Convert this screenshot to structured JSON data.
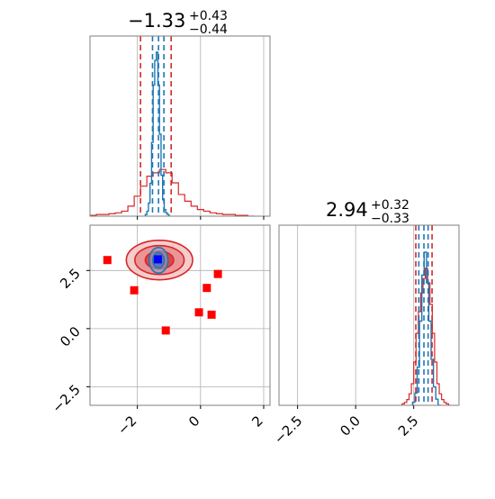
{
  "chart_data": {
    "type": "corner",
    "parameters": [
      {
        "value": "-1.33",
        "plus": "+0.43",
        "minus": "-0.44",
        "median": -1.33,
        "low": -1.77,
        "high": -0.9
      },
      {
        "value": "2.94",
        "plus": "+0.32",
        "minus": "-0.33",
        "median": 2.94,
        "low": 2.61,
        "high": 3.26
      }
    ],
    "x_range_param1": [
      -3.5,
      2.2
    ],
    "x_range_param2": [
      -3.3,
      4.45
    ],
    "ticks_param1": [
      "-2",
      "0",
      "2"
    ],
    "ticks_param1_values": [
      -2,
      0,
      2
    ],
    "ticks_param2": [
      "-2.5",
      "0.0",
      "2.5"
    ],
    "ticks_param2_values": [
      -2.5,
      0.0,
      2.5
    ],
    "grid": true,
    "series": [
      {
        "name": "",
        "color": "#1f77b4",
        "quantiles_inner": [
          -1.52,
          -1.16
        ],
        "quantiles_inner_param2": [
          2.72,
          3.12
        ]
      },
      {
        "name": "",
        "color": "#d62728",
        "quantiles_outer": [
          -1.9,
          -0.93
        ],
        "quantiles_outer_param2": [
          2.59,
          3.29
        ]
      }
    ],
    "hist_param1_blue": {
      "bins": [
        -1.75,
        -1.7,
        -1.65,
        -1.6,
        -1.55,
        -1.5,
        -1.45,
        -1.4,
        -1.35,
        -1.3,
        -1.25,
        -1.2,
        -1.15,
        -1.1,
        -1.05,
        -1.0
      ],
      "counts": [
        0.01,
        0.03,
        0.08,
        0.2,
        0.45,
        0.8,
        0.95,
        1.0,
        0.8,
        0.5,
        0.25,
        0.1,
        0.04,
        0.02,
        0.01,
        0.0
      ]
    },
    "hist_param1_red": {
      "bins": [
        -3.5,
        -3.3,
        -3.1,
        -2.9,
        -2.7,
        -2.5,
        -2.3,
        -2.1,
        -1.9,
        -1.7,
        -1.5,
        -1.3,
        -1.1,
        -0.9,
        -0.7,
        -0.5,
        -0.3,
        -0.1,
        0.1,
        0.3,
        0.5,
        0.7,
        0.9,
        1.1,
        1.3,
        1.5
      ],
      "counts": [
        0.005,
        0.01,
        0.01,
        0.015,
        0.02,
        0.03,
        0.06,
        0.12,
        0.18,
        0.24,
        0.26,
        0.28,
        0.26,
        0.2,
        0.13,
        0.09,
        0.06,
        0.04,
        0.03,
        0.02,
        0.015,
        0.01,
        0.01,
        0.005,
        0.005,
        0.0
      ]
    },
    "hist_param2_blue": {
      "bins": [
        2.45,
        2.55,
        2.65,
        2.75,
        2.85,
        2.95,
        3.05,
        3.15,
        3.25,
        3.35,
        3.45,
        3.55
      ],
      "counts": [
        0.02,
        0.08,
        0.25,
        0.55,
        0.85,
        1.0,
        0.8,
        0.55,
        0.3,
        0.12,
        0.04,
        0.0
      ]
    },
    "hist_param2_red": {
      "bins": [
        2.0,
        2.1,
        2.2,
        2.3,
        2.4,
        2.5,
        2.6,
        2.7,
        2.8,
        2.9,
        3.0,
        3.1,
        3.2,
        3.3,
        3.4,
        3.5,
        3.6,
        3.7,
        3.8,
        3.9,
        4.0
      ],
      "counts": [
        0.01,
        0.02,
        0.04,
        0.08,
        0.15,
        0.3,
        0.5,
        0.65,
        0.78,
        0.88,
        0.95,
        0.85,
        0.7,
        0.5,
        0.3,
        0.15,
        0.08,
        0.04,
        0.02,
        0.01,
        0.0
      ]
    },
    "contours_red": [
      {
        "cx": -1.3,
        "cy": 2.95,
        "rx": 1.05,
        "ry": 0.85
      },
      {
        "cx": -1.3,
        "cy": 2.95,
        "rx": 0.78,
        "ry": 0.62
      },
      {
        "cx": -1.3,
        "cy": 2.95,
        "rx": 0.45,
        "ry": 0.38
      }
    ],
    "contours_blue": [
      {
        "cx": -1.33,
        "cy": 2.94,
        "rx": 0.3,
        "ry": 0.55
      },
      {
        "cx": -1.33,
        "cy": 2.94,
        "rx": 0.18,
        "ry": 0.33
      }
    ],
    "red_markers": [
      {
        "x": -2.95,
        "y": 2.95
      },
      {
        "x": -2.1,
        "y": 1.65
      },
      {
        "x": 0.55,
        "y": 2.35
      },
      {
        "x": 0.2,
        "y": 1.75
      },
      {
        "x": -0.05,
        "y": 0.7
      },
      {
        "x": 0.35,
        "y": 0.6
      },
      {
        "x": -1.1,
        "y": -0.08
      }
    ],
    "blue_marker": {
      "x": -1.35,
      "y": 2.98
    }
  }
}
